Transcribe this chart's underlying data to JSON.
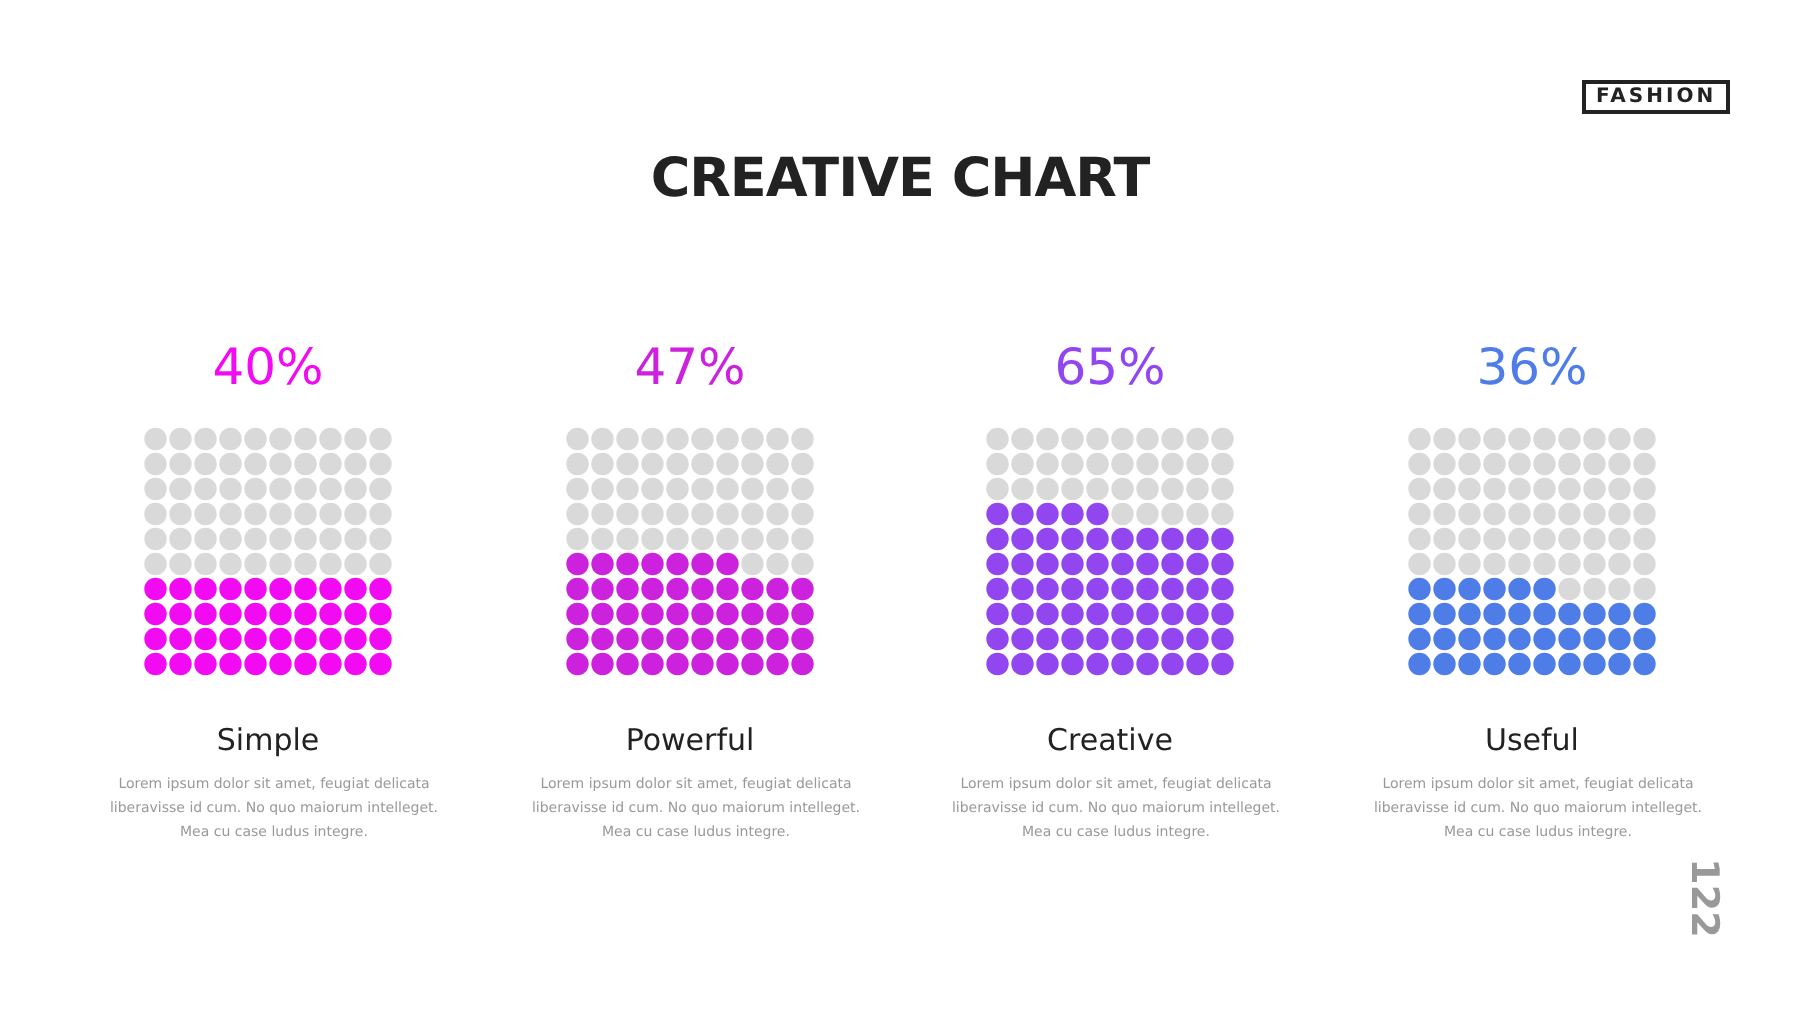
{
  "chart_data": {
    "type": "other",
    "title": "CREATIVE CHART",
    "categories": [
      "Simple",
      "Powerful",
      "Creative",
      "Useful"
    ],
    "values": [
      40,
      47,
      65,
      36
    ],
    "value_labels": [
      "40%",
      "47%",
      "65%",
      "36%"
    ],
    "colors": [
      "#f20af2",
      "#cc22dd",
      "#9146f0",
      "#4f7de8"
    ],
    "annotations": [
      "Lorem ipsum dolor sit amet, feugiat delicata liberavisse id cum. No quo maiorum intelleget. Mea cu case ludus integre.",
      "Lorem ipsum dolor sit amet, feugiat delicata liberavisse id cum. No quo maiorum intelleget. Mea cu case ludus integre.",
      "Lorem ipsum dolor sit amet, feugiat delicata liberavisse id cum. No quo maiorum intelleget. Mea cu case ludus integre.",
      "Lorem ipsum dolor sit amet, feugiat delicata liberavisse id cum. No quo maiorum intelleget. Mea cu case ludus integre.",
      "FASHION",
      "122"
    ]
  }
}
